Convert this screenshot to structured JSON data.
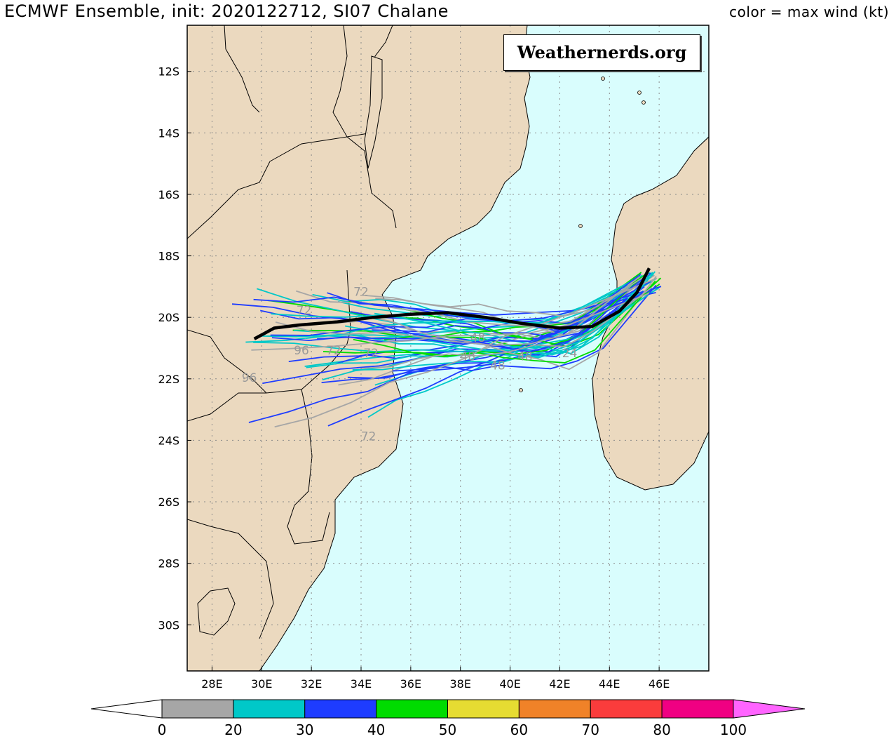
{
  "header": {
    "title": "ECMWF Ensemble, init: 2020122712, SI07 Chalane",
    "subtitle": "color = max wind (kt)"
  },
  "watermark": "Weathernerds.org",
  "map": {
    "lon_range": [
      27,
      48
    ],
    "lat_range": [
      -31.5,
      -10.5
    ],
    "lat_ticks": [
      {
        "v": -12,
        "label": "12S"
      },
      {
        "v": -14,
        "label": "14S"
      },
      {
        "v": -16,
        "label": "16S"
      },
      {
        "v": -18,
        "label": "18S"
      },
      {
        "v": -20,
        "label": "20S"
      },
      {
        "v": -22,
        "label": "22S"
      },
      {
        "v": -24,
        "label": "24S"
      },
      {
        "v": -26,
        "label": "26S"
      },
      {
        "v": -28,
        "label": "28S"
      },
      {
        "v": -30,
        "label": "30S"
      }
    ],
    "lon_ticks": [
      {
        "v": 28,
        "label": "28E"
      },
      {
        "v": 30,
        "label": "30E"
      },
      {
        "v": 32,
        "label": "32E"
      },
      {
        "v": 34,
        "label": "34E"
      },
      {
        "v": 36,
        "label": "36E"
      },
      {
        "v": 38,
        "label": "38E"
      },
      {
        "v": 40,
        "label": "40E"
      },
      {
        "v": 42,
        "label": "42E"
      },
      {
        "v": 44,
        "label": "44E"
      },
      {
        "v": 46,
        "label": "46E"
      }
    ],
    "colors": {
      "ocean": "#d9fdfd",
      "land": "#ebd9bf",
      "grid": "#8a8a8a"
    }
  },
  "ensemble_mean_track": [
    [
      45.6,
      -18.4
    ],
    [
      45.1,
      -19.2
    ],
    [
      44.4,
      -19.8
    ],
    [
      43.3,
      -20.3
    ],
    [
      42.0,
      -20.35
    ],
    [
      40.5,
      -20.2
    ],
    [
      39.0,
      -20.0
    ],
    [
      37.5,
      -19.85
    ],
    [
      36.0,
      -19.9
    ],
    [
      34.5,
      -20.0
    ],
    [
      33.0,
      -20.15
    ],
    [
      31.5,
      -20.25
    ],
    [
      30.5,
      -20.35
    ],
    [
      29.7,
      -20.7
    ]
  ],
  "hour_labels": [
    {
      "text": "72",
      "lon": 34.0,
      "lat": -19.3,
      "color": "#999999"
    },
    {
      "text": "72",
      "lon": 31.7,
      "lat": -19.9,
      "color": "#999999"
    },
    {
      "text": "96",
      "lon": 31.6,
      "lat": -21.2,
      "color": "#999999"
    },
    {
      "text": "72",
      "lon": 32.9,
      "lat": -21.2,
      "color": "#999999"
    },
    {
      "text": "72",
      "lon": 34.4,
      "lat": -21.3,
      "color": "#999999"
    },
    {
      "text": "96",
      "lon": 29.5,
      "lat": -22.1,
      "color": "#999999"
    },
    {
      "text": "72",
      "lon": 34.3,
      "lat": -24.0,
      "color": "#999999"
    },
    {
      "text": "48",
      "lon": 38.3,
      "lat": -21.4,
      "color": "#999999"
    },
    {
      "text": "48",
      "lon": 39.5,
      "lat": -21.7,
      "color": "#999999"
    },
    {
      "text": "48",
      "lon": 40.6,
      "lat": -21.4,
      "color": "#999999"
    },
    {
      "text": "24",
      "lon": 42.4,
      "lat": -21.3,
      "color": "#999999"
    },
    {
      "text": "48",
      "lon": 38.7,
      "lat": -20.8,
      "color": "#999999"
    }
  ],
  "colorbar": {
    "bins": [
      {
        "color": "#a6a6a6",
        "from": 0,
        "to": 20
      },
      {
        "color": "#00c8c8",
        "from": 20,
        "to": 30
      },
      {
        "color": "#1e3cff",
        "from": 30,
        "to": 40
      },
      {
        "color": "#00dc00",
        "from": 40,
        "to": 50
      },
      {
        "color": "#e6dc32",
        "from": 50,
        "to": 60
      },
      {
        "color": "#f08228",
        "from": 60,
        "to": 70
      },
      {
        "color": "#fa3c3c",
        "from": 70,
        "to": 80
      },
      {
        "color": "#f00082",
        "from": 80,
        "to": 100
      }
    ],
    "under_color": "#ffffff",
    "over_color": "#ff64ff",
    "labels": [
      "0",
      "20",
      "30",
      "40",
      "50",
      "60",
      "70",
      "80",
      "100"
    ]
  }
}
